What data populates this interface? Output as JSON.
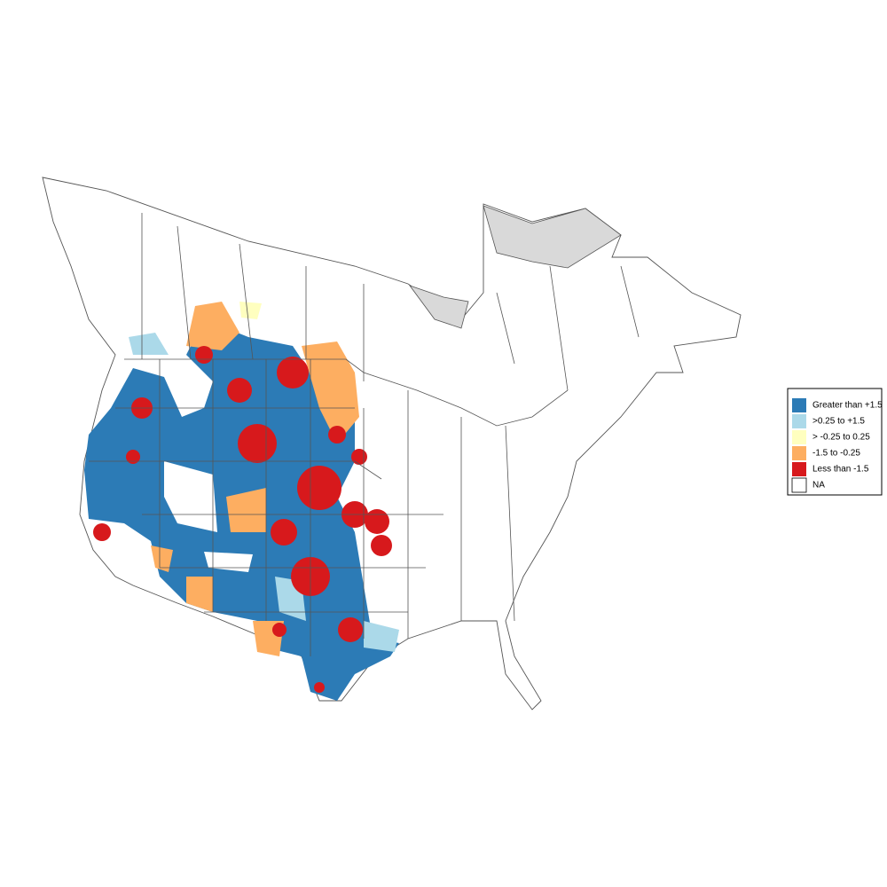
{
  "legend": {
    "items": [
      {
        "label": "Greater than +1.5",
        "color": "#2c7bb6"
      },
      {
        "label": ">0.25 to +1.5",
        "color": "#abd9e9"
      },
      {
        "label": "> -0.25 to 0.25",
        "color": "#ffffbf"
      },
      {
        "label": "-1.5 to -0.25",
        "color": "#fdae61"
      },
      {
        "label": "Less than -1.5",
        "color": "#d7191c"
      },
      {
        "label": "NA",
        "color": "#ffffff"
      }
    ]
  }
}
